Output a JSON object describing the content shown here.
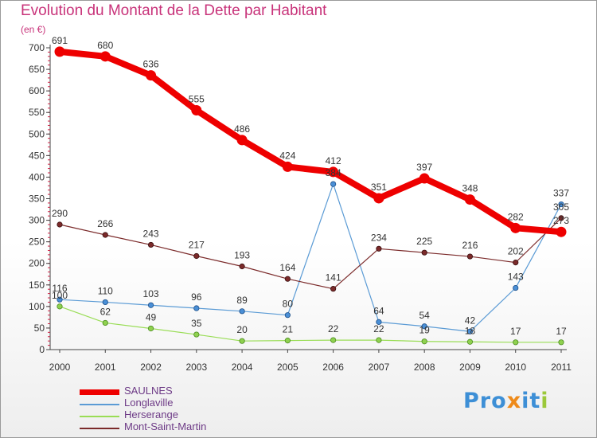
{
  "title": "Evolution du Montant de la Dette par Habitant",
  "unit_label": "(en €)",
  "logo_text": "Proxiti",
  "chart_data": {
    "type": "line",
    "x": [
      "2000",
      "2001",
      "2002",
      "2003",
      "2004",
      "2005",
      "2006",
      "2007",
      "2008",
      "2009",
      "2010",
      "2011"
    ],
    "ylim": [
      0,
      700
    ],
    "yticks": [
      0,
      50,
      100,
      150,
      200,
      250,
      300,
      350,
      400,
      450,
      500,
      550,
      600,
      650,
      700
    ],
    "grid": false,
    "legend_position": "bottom-left",
    "series": [
      {
        "name": "SAULNES",
        "color": "#ee0000",
        "values": [
          691,
          680,
          636,
          555,
          486,
          424,
          412,
          351,
          397,
          348,
          282,
          273
        ]
      },
      {
        "name": "Longlaville",
        "color": "#5b9bd5",
        "values": [
          116,
          110,
          103,
          96,
          89,
          80,
          384,
          64,
          54,
          42,
          143,
          337
        ]
      },
      {
        "name": "Herserange",
        "color": "#99dd55",
        "values": [
          100,
          62,
          49,
          35,
          20,
          21,
          22,
          22,
          19,
          18,
          17,
          17
        ]
      },
      {
        "name": "Mont-Saint-Martin",
        "color": "#7b2a2a",
        "values": [
          290,
          266,
          243,
          217,
          193,
          164,
          141,
          234,
          225,
          216,
          202,
          305
        ]
      }
    ]
  }
}
